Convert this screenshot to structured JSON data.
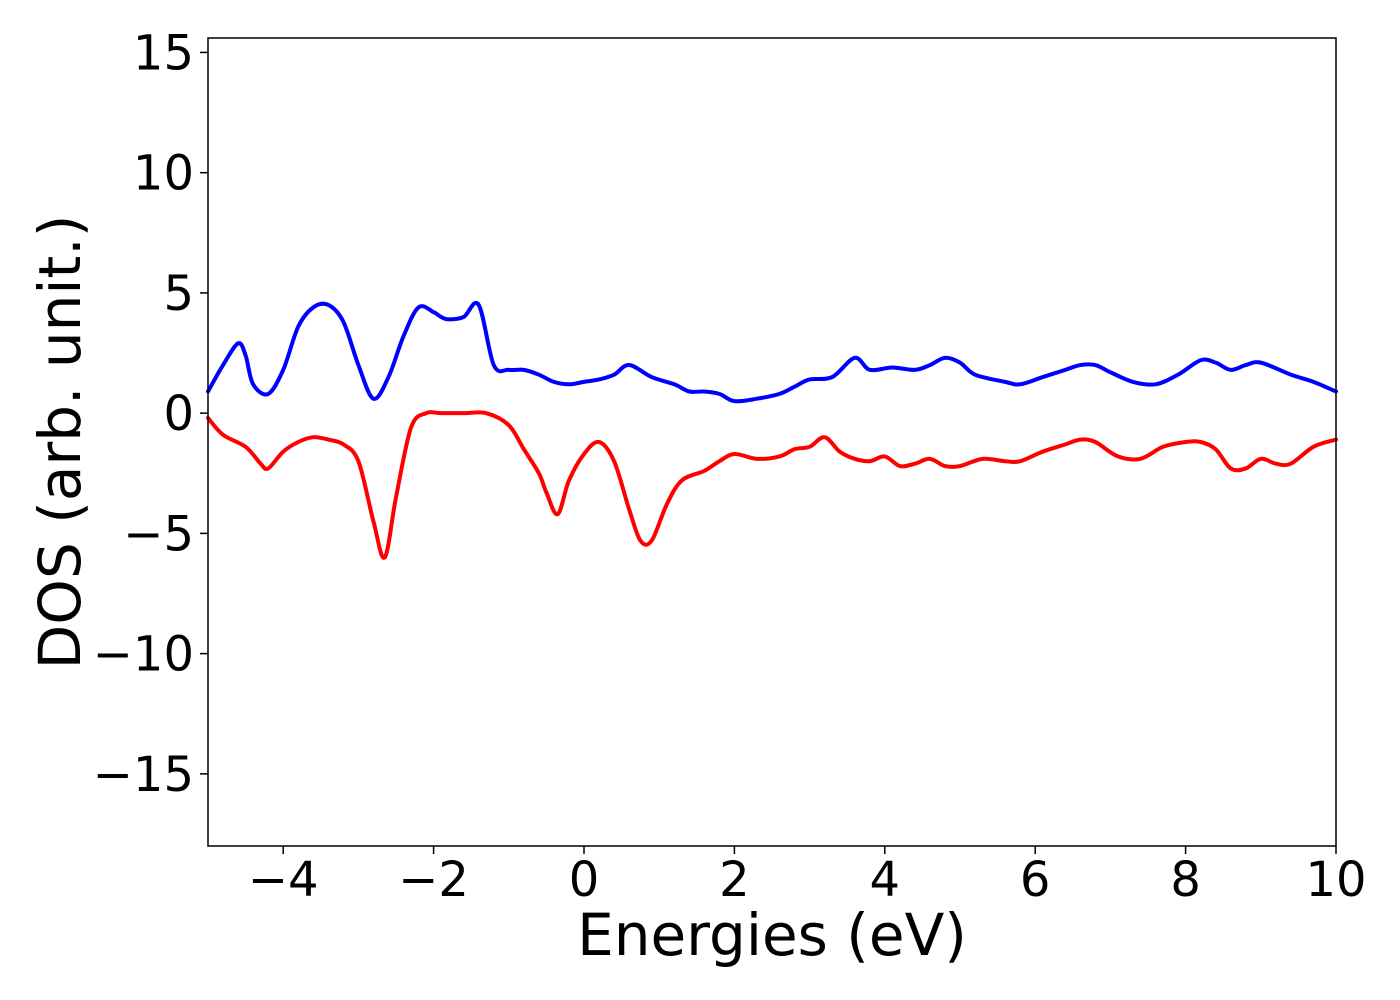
{
  "chart_data": {
    "type": "line",
    "title": "",
    "xlabel": "Energies (eV)",
    "ylabel": "DOS (arb. unit.)",
    "xlim": [
      -5,
      10
    ],
    "ylim": [
      -18,
      15.6
    ],
    "xticks": [
      -4,
      -2,
      0,
      2,
      4,
      6,
      8,
      10
    ],
    "xtick_labels": [
      "−4",
      "−2",
      "0",
      "2",
      "4",
      "6",
      "8",
      "10"
    ],
    "yticks": [
      15,
      10,
      5,
      0,
      -5,
      -10,
      -15
    ],
    "ytick_labels": [
      "15",
      "10",
      "5",
      "0",
      "−5",
      "−10",
      "−15"
    ],
    "grid": false,
    "legend": "none",
    "series": [
      {
        "color": "#0000ff",
        "x": [
          -5.0,
          -4.8,
          -4.6,
          -4.5,
          -4.4,
          -4.2,
          -4.0,
          -3.8,
          -3.6,
          -3.4,
          -3.2,
          -3.0,
          -2.8,
          -2.6,
          -2.4,
          -2.2,
          -2.0,
          -1.9,
          -1.8,
          -1.6,
          -1.4,
          -1.2,
          -1.0,
          -0.8,
          -0.6,
          -0.4,
          -0.2,
          0.0,
          0.2,
          0.4,
          0.6,
          0.9,
          1.2,
          1.4,
          1.6,
          1.8,
          2.0,
          2.3,
          2.6,
          2.8,
          3.0,
          3.3,
          3.6,
          3.8,
          4.1,
          4.4,
          4.6,
          4.8,
          5.0,
          5.2,
          5.6,
          5.8,
          6.1,
          6.4,
          6.6,
          6.8,
          7.0,
          7.3,
          7.6,
          7.9,
          8.2,
          8.4,
          8.6,
          8.8,
          9.0,
          9.4,
          9.7,
          10.0
        ],
        "y": [
          0.9,
          2.0,
          2.9,
          2.4,
          1.2,
          0.8,
          1.8,
          3.6,
          4.4,
          4.5,
          3.8,
          2.0,
          0.6,
          1.5,
          3.2,
          4.4,
          4.2,
          4.0,
          3.9,
          4.0,
          4.5,
          2.0,
          1.8,
          1.8,
          1.6,
          1.3,
          1.2,
          1.3,
          1.4,
          1.6,
          2.0,
          1.5,
          1.2,
          0.9,
          0.9,
          0.8,
          0.5,
          0.6,
          0.8,
          1.1,
          1.4,
          1.5,
          2.3,
          1.8,
          1.9,
          1.8,
          2.0,
          2.3,
          2.1,
          1.6,
          1.3,
          1.2,
          1.5,
          1.8,
          2.0,
          2.0,
          1.7,
          1.3,
          1.2,
          1.6,
          2.2,
          2.1,
          1.8,
          2.0,
          2.1,
          1.6,
          1.3,
          0.9
        ]
      },
      {
        "color": "#ff0000",
        "x": [
          -5.0,
          -4.8,
          -4.5,
          -4.3,
          -4.2,
          -4.0,
          -3.8,
          -3.6,
          -3.4,
          -3.2,
          -3.0,
          -2.8,
          -2.65,
          -2.5,
          -2.3,
          -2.1,
          -1.9,
          -1.6,
          -1.3,
          -1.0,
          -0.8,
          -0.6,
          -0.5,
          -0.35,
          -0.2,
          0.0,
          0.2,
          0.4,
          0.6,
          0.75,
          0.9,
          1.1,
          1.3,
          1.6,
          1.8,
          2.0,
          2.3,
          2.6,
          2.8,
          3.0,
          3.2,
          3.4,
          3.6,
          3.8,
          4.0,
          4.2,
          4.4,
          4.6,
          4.8,
          5.0,
          5.3,
          5.6,
          5.8,
          6.1,
          6.4,
          6.6,
          6.8,
          7.1,
          7.4,
          7.7,
          8.0,
          8.2,
          8.4,
          8.6,
          8.8,
          9.0,
          9.2,
          9.4,
          9.7,
          10.0
        ],
        "y": [
          -0.2,
          -0.9,
          -1.4,
          -2.1,
          -2.3,
          -1.6,
          -1.2,
          -1.0,
          -1.1,
          -1.3,
          -2.0,
          -4.5,
          -6.0,
          -3.5,
          -0.6,
          0.0,
          0.0,
          0.0,
          0.0,
          -0.5,
          -1.5,
          -2.5,
          -3.3,
          -4.2,
          -2.8,
          -1.7,
          -1.2,
          -2.0,
          -4.0,
          -5.3,
          -5.3,
          -3.8,
          -2.8,
          -2.4,
          -2.0,
          -1.7,
          -1.9,
          -1.8,
          -1.5,
          -1.4,
          -1.0,
          -1.6,
          -1.9,
          -2.0,
          -1.8,
          -2.2,
          -2.1,
          -1.9,
          -2.2,
          -2.2,
          -1.9,
          -2.0,
          -2.0,
          -1.6,
          -1.3,
          -1.1,
          -1.2,
          -1.8,
          -1.9,
          -1.4,
          -1.2,
          -1.2,
          -1.5,
          -2.3,
          -2.3,
          -1.9,
          -2.1,
          -2.1,
          -1.4,
          -1.1
        ]
      }
    ]
  }
}
